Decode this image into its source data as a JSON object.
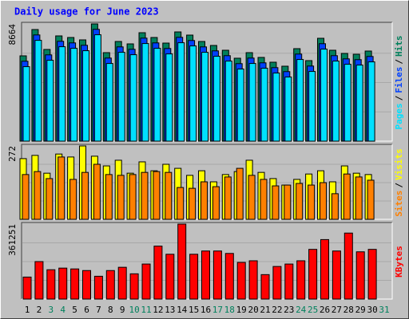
{
  "chart_data": [
    {
      "type": "bar",
      "title": "Daily usage for June 2023",
      "legend_separator": "/",
      "ylim": [
        0,
        8664
      ],
      "yticks": [
        8664
      ],
      "series": [
        {
          "name": "Hits",
          "color": "#00805c",
          "values": [
            6306,
            8250,
            6778,
            7780,
            7662,
            7485,
            8664,
            6542,
            7367,
            7190,
            8015,
            7662,
            7249,
            8074,
            7839,
            7367,
            7073,
            6719,
            6130,
            6542,
            6189,
            5835,
            5540,
            6837,
            5953,
            7603,
            6719,
            6483,
            6424,
            6660,
            null
          ]
        },
        {
          "name": "Files",
          "color": "#0040ff",
          "values": [
            5906,
            7850,
            6378,
            7380,
            7262,
            7085,
            8264,
            6142,
            6967,
            6790,
            7615,
            7262,
            6849,
            7674,
            7439,
            6967,
            6673,
            6319,
            5730,
            6142,
            5789,
            5435,
            5140,
            6437,
            5553,
            7203,
            6319,
            6083,
            6024,
            6260,
            null
          ]
        },
        {
          "name": "Pages",
          "color": "#00e0ff",
          "values": [
            5506,
            7450,
            5978,
            6980,
            6862,
            6685,
            7864,
            5742,
            6567,
            6390,
            7215,
            6862,
            6449,
            7274,
            7039,
            6567,
            6273,
            5919,
            5330,
            5742,
            5389,
            5035,
            4740,
            6037,
            5153,
            6803,
            5919,
            5683,
            5624,
            5860,
            null
          ]
        }
      ]
    },
    {
      "type": "bar",
      "legend_separator": "/",
      "ylim": [
        0,
        272
      ],
      "yticks": [
        272
      ],
      "series": [
        {
          "name": "Visits",
          "color": "#ffff00",
          "values": [
            225,
            237,
            171,
            242,
            231,
            272,
            234,
            198,
            219,
            171,
            213,
            180,
            204,
            189,
            163,
            180,
            139,
            166,
            177,
            219,
            174,
            151,
            127,
            148,
            168,
            180,
            139,
            198,
            171,
            166,
            null
          ]
        },
        {
          "name": "Sites",
          "color": "#ff8000",
          "values": [
            166,
            177,
            151,
            231,
            148,
            174,
            204,
            166,
            163,
            166,
            174,
            177,
            174,
            118,
            115,
            139,
            121,
            157,
            189,
            163,
            148,
            124,
            127,
            133,
            127,
            136,
            95,
            168,
            157,
            145,
            null
          ]
        }
      ]
    },
    {
      "type": "bar",
      "ylim": [
        0,
        361251
      ],
      "yticks": [
        361251
      ],
      "categories": [
        "1",
        "2",
        "3",
        "4",
        "5",
        "6",
        "7",
        "8",
        "9",
        "10",
        "11",
        "12",
        "13",
        "14",
        "15",
        "16",
        "17",
        "18",
        "19",
        "20",
        "21",
        "22",
        "23",
        "24",
        "25",
        "26",
        "27",
        "28",
        "29",
        "30",
        "31"
      ],
      "category_colors": [
        "#000000",
        "#000000",
        "#00805c",
        "#00805c",
        "#000000",
        "#000000",
        "#000000",
        "#000000",
        "#000000",
        "#00805c",
        "#00805c",
        "#000000",
        "#000000",
        "#000000",
        "#000000",
        "#000000",
        "#00805c",
        "#00805c",
        "#000000",
        "#000000",
        "#000000",
        "#000000",
        "#000000",
        "#00805c",
        "#00805c",
        "#000000",
        "#000000",
        "#000000",
        "#000000",
        "#000000",
        "#00805c"
      ],
      "series": [
        {
          "name": "KBytes",
          "color": "#ff0000",
          "values": [
            106019,
            180624,
            141359,
            149212,
            145286,
            137432,
            109946,
            137432,
            153139,
            121726,
            168845,
            255231,
            215965,
            361251,
            215965,
            231672,
            231672,
            219892,
            176698,
            184551,
            117799,
            157066,
            168845,
            184551,
            239525,
            286645,
            231672,
            318058,
            227745,
            239525,
            null
          ]
        }
      ]
    }
  ]
}
